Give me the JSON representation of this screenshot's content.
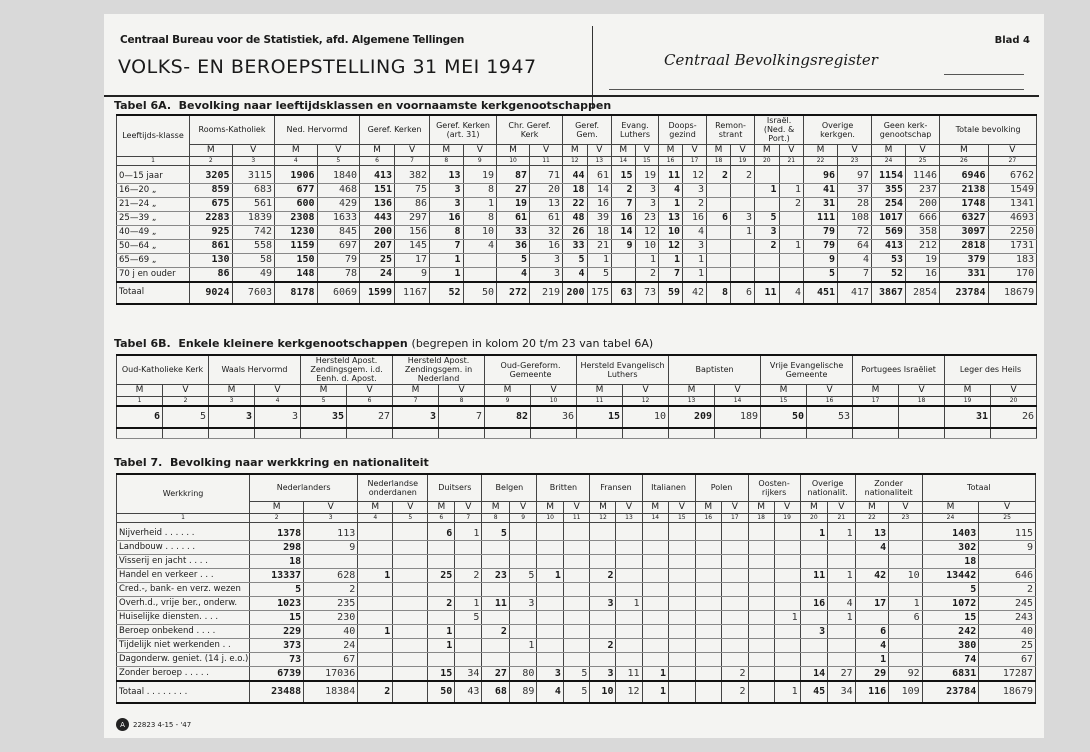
{
  "header": {
    "agency": "Centraal Bureau voor de Statistiek, afd. Algemene Tellingen",
    "title": "VOLKS- EN BEROEPSTELLING 31 MEI 1947",
    "register": "Centraal Bevolkingsregister",
    "sheet": "Blad 4"
  },
  "table6a": {
    "title": "Tabel 6A.",
    "subtitle": "Bevolking naar leeftijdsklassen en voornaamste kerkgenootschappen",
    "label_header": "Leeftijds-klasse",
    "groups": [
      "Rooms-Katholiek",
      "Ned. Hervormd",
      "Geref. Kerken",
      "Geref. Kerken (art. 31)",
      "Chr. Geref. Kerk",
      "Geref. Gem.",
      "Evang. Luthers",
      "Doops-gezind",
      "Remon-strant",
      "Israël. (Ned. & Port.)",
      "Overige kerkgen.",
      "Geen kerk-genootschap",
      "Totale bevolking"
    ],
    "rows": [
      {
        "label": "0—15 jaar",
        "values": [
          "3205",
          "3115",
          "1906",
          "1840",
          "413",
          "382",
          "13",
          "19",
          "87",
          "71",
          "44",
          "61",
          "15",
          "19",
          "11",
          "12",
          "2",
          "2",
          "",
          "",
          "96",
          "97",
          "1154",
          "1146",
          "6946",
          "6762"
        ]
      },
      {
        "label": "16—20 „",
        "values": [
          "859",
          "683",
          "677",
          "468",
          "151",
          "75",
          "3",
          "8",
          "27",
          "20",
          "18",
          "14",
          "2",
          "3",
          "4",
          "3",
          "",
          "",
          "1",
          "1",
          "41",
          "37",
          "355",
          "237",
          "2138",
          "1549"
        ]
      },
      {
        "label": "21—24 „",
        "values": [
          "675",
          "561",
          "600",
          "429",
          "136",
          "86",
          "3",
          "1",
          "19",
          "13",
          "22",
          "16",
          "7",
          "3",
          "1",
          "2",
          "",
          "",
          "",
          "2",
          "31",
          "28",
          "254",
          "200",
          "1748",
          "1341"
        ]
      },
      {
        "label": "25—39 „",
        "values": [
          "2283",
          "1839",
          "2308",
          "1633",
          "443",
          "297",
          "16",
          "8",
          "61",
          "61",
          "48",
          "39",
          "16",
          "23",
          "13",
          "16",
          "6",
          "3",
          "5",
          "",
          "111",
          "108",
          "1017",
          "666",
          "6327",
          "4693"
        ]
      },
      {
        "label": "40—49 „",
        "values": [
          "925",
          "742",
          "1230",
          "845",
          "200",
          "156",
          "8",
          "10",
          "33",
          "32",
          "26",
          "18",
          "14",
          "12",
          "10",
          "4",
          "",
          "1",
          "3",
          "",
          "79",
          "72",
          "569",
          "358",
          "3097",
          "2250"
        ]
      },
      {
        "label": "50—64 „",
        "values": [
          "861",
          "558",
          "1159",
          "697",
          "207",
          "145",
          "7",
          "4",
          "36",
          "16",
          "33",
          "21",
          "9",
          "10",
          "12",
          "3",
          "",
          "",
          "2",
          "1",
          "79",
          "64",
          "413",
          "212",
          "2818",
          "1731"
        ]
      },
      {
        "label": "65—69 „",
        "values": [
          "130",
          "58",
          "150",
          "79",
          "25",
          "17",
          "1",
          "",
          "5",
          "3",
          "5",
          "1",
          "",
          "1",
          "1",
          "1",
          "",
          "",
          "",
          "",
          "9",
          "4",
          "53",
          "19",
          "379",
          "183"
        ]
      },
      {
        "label": "70 j en ouder",
        "values": [
          "86",
          "49",
          "148",
          "78",
          "24",
          "9",
          "1",
          "",
          "4",
          "3",
          "4",
          "5",
          "",
          "2",
          "7",
          "1",
          "",
          "",
          "",
          "",
          "5",
          "7",
          "52",
          "16",
          "331",
          "170"
        ]
      }
    ],
    "total": {
      "label": "Totaal",
      "values": [
        "9024",
        "7603",
        "8178",
        "6069",
        "1599",
        "1167",
        "52",
        "50",
        "272",
        "219",
        "200",
        "175",
        "63",
        "73",
        "59",
        "42",
        "8",
        "6",
        "11",
        "4",
        "451",
        "417",
        "3867",
        "2854",
        "23784",
        "18679"
      ]
    }
  },
  "table6b": {
    "title": "Tabel 6B.",
    "subtitle": "Enkele kleinere kerkgenootschappen",
    "note": "(begrepen in kolom 20 t/m 23 van tabel 6A)",
    "groups": [
      "Oud-Katholieke Kerk",
      "Waals Hervormd",
      "Hersteld Apost. Zendingsgem. i.d. Eenh. d. Apost.",
      "Hersteld Apost. Zendingsgem. in Nederland",
      "Oud-Gereform. Gemeente",
      "Hersteld Evangelisch Luthers",
      "Baptisten",
      "Vrije Evangelische Gemeente",
      "Portugees Israëliet",
      "Leger des Heils"
    ],
    "values": [
      "6",
      "5",
      "3",
      "3",
      "35",
      "27",
      "3",
      "7",
      "82",
      "36",
      "15",
      "10",
      "209",
      "189",
      "50",
      "53",
      "",
      "",
      "31",
      "26"
    ]
  },
  "table7": {
    "title": "Tabel 7.",
    "subtitle": "Bevolking naar werkkring en nationaliteit",
    "label_header": "Werkkring",
    "groups": [
      "Nederlanders",
      "Nederlandse onderdanen",
      "Duitsers",
      "Belgen",
      "Britten",
      "Fransen",
      "Italianen",
      "Polen",
      "Oosten-rijkers",
      "Overige nationalit.",
      "Zonder nationaliteit",
      "Totaal"
    ],
    "rows": [
      {
        "label": "Nijverheid . . . . . .",
        "values": [
          "1378",
          "113",
          "",
          "",
          "6",
          "1",
          "5",
          "",
          "",
          "",
          "",
          "",
          "",
          "",
          "",
          "",
          "",
          "",
          "1",
          "1",
          "13",
          "",
          "1403",
          "115"
        ]
      },
      {
        "label": "Landbouw . . . . . .",
        "values": [
          "298",
          "9",
          "",
          "",
          "",
          "",
          "",
          "",
          "",
          "",
          "",
          "",
          "",
          "",
          "",
          "",
          "",
          "",
          "",
          "",
          "4",
          "",
          "302",
          "9"
        ]
      },
      {
        "label": "Visserij en jacht . . . .",
        "values": [
          "18",
          "",
          "",
          "",
          "",
          "",
          "",
          "",
          "",
          "",
          "",
          "",
          "",
          "",
          "",
          "",
          "",
          "",
          "",
          "",
          "",
          "",
          "18",
          ""
        ]
      },
      {
        "label": "Handel en verkeer . . .",
        "values": [
          "13337",
          "628",
          "1",
          "",
          "25",
          "2",
          "23",
          "5",
          "1",
          "",
          "2",
          "",
          "",
          "",
          "",
          "",
          "",
          "",
          "11",
          "1",
          "42",
          "10",
          "13442",
          "646"
        ]
      },
      {
        "label": "Cred.-, bank- en verz. wezen",
        "values": [
          "5",
          "2",
          "",
          "",
          "",
          "",
          "",
          "",
          "",
          "",
          "",
          "",
          "",
          "",
          "",
          "",
          "",
          "",
          "",
          "",
          "",
          "",
          "5",
          "2"
        ]
      },
      {
        "label": "Overh.d., vrije ber., onderw.",
        "values": [
          "1023",
          "235",
          "",
          "",
          "2",
          "1",
          "11",
          "3",
          "",
          "",
          "3",
          "1",
          "",
          "",
          "",
          "",
          "",
          "",
          "16",
          "4",
          "17",
          "1",
          "1072",
          "245"
        ]
      },
      {
        "label": "Huiselijke diensten. . . .",
        "values": [
          "15",
          "230",
          "",
          "",
          "",
          "5",
          "",
          "",
          "",
          "",
          "",
          "",
          "",
          "",
          "",
          "",
          "",
          "1",
          "",
          "1",
          "",
          "6",
          "15",
          "243"
        ]
      },
      {
        "label": "Beroep onbekend . . . .",
        "values": [
          "229",
          "40",
          "1",
          "",
          "1",
          "",
          "2",
          "",
          "",
          "",
          "",
          "",
          "",
          "",
          "",
          "",
          "",
          "",
          "3",
          "",
          "6",
          "",
          "242",
          "40"
        ]
      },
      {
        "label": "Tijdelijk niet werkenden . .",
        "values": [
          "373",
          "24",
          "",
          "",
          "1",
          "",
          "",
          "1",
          "",
          "",
          "2",
          "",
          "",
          "",
          "",
          "",
          "",
          "",
          "",
          "",
          "4",
          "",
          "380",
          "25"
        ]
      },
      {
        "label": "Dagonderw. geniet. (14 j. e.o.)",
        "values": [
          "73",
          "67",
          "",
          "",
          "",
          "",
          "",
          "",
          "",
          "",
          "",
          "",
          "",
          "",
          "",
          "",
          "",
          "",
          "",
          "",
          "1",
          "",
          "74",
          "67"
        ]
      },
      {
        "label": "Zonder beroep . . . . .",
        "values": [
          "6739",
          "17036",
          "",
          "",
          "15",
          "34",
          "27",
          "80",
          "3",
          "5",
          "3",
          "11",
          "1",
          "",
          "",
          "2",
          "",
          "",
          "14",
          "27",
          "29",
          "92",
          "6831",
          "17287"
        ]
      }
    ],
    "total": {
      "label": "Totaal . . . . . . . .",
      "values": [
        "23488",
        "18384",
        "2",
        "",
        "50",
        "43",
        "68",
        "89",
        "4",
        "5",
        "10",
        "12",
        "1",
        "",
        "",
        "2",
        "",
        "1",
        "45",
        "34",
        "116",
        "109",
        "23784",
        "18679"
      ]
    }
  },
  "labels": {
    "m": "M",
    "v": "V"
  },
  "footer": {
    "code": "22823 4-15 - '47"
  }
}
